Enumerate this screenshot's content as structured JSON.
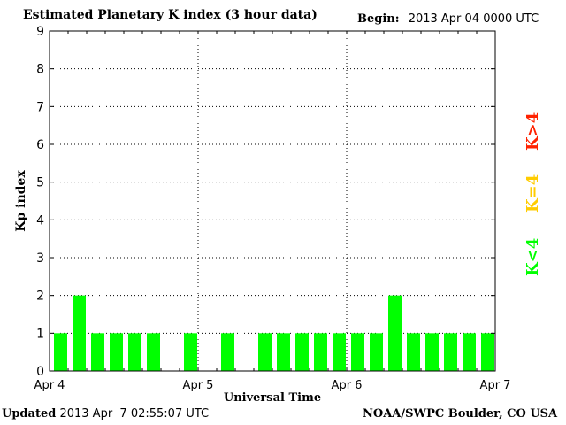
{
  "header": {
    "title": "Estimated Planetary K index (3 hour data)",
    "begin_label": "Begin:",
    "begin_value": "2013 Apr 04 0000 UTC"
  },
  "footer": {
    "updated_label": "Updated",
    "updated_value": "2013 Apr  7 02:55:07 UTC",
    "credit": "NOAA/SWPC Boulder, CO USA"
  },
  "legend": [
    {
      "label": "K>4",
      "color": "#ff2200"
    },
    {
      "label": "K=4",
      "color": "#ffcc00"
    },
    {
      "label": "K<4",
      "color": "#00ff00"
    }
  ],
  "chart_data": {
    "type": "bar",
    "title": "Estimated Planetary K index (3 hour data)",
    "xlabel": "Universal Time",
    "ylabel": "Kp index",
    "ylim": [
      0,
      9
    ],
    "yticks": [
      0,
      1,
      2,
      3,
      4,
      5,
      6,
      7,
      8,
      9
    ],
    "x_tick_labels": [
      "Apr 4",
      "Apr 5",
      "Apr 6",
      "Apr 7"
    ],
    "grid": true,
    "bar_color": "#00ff00",
    "values": [
      1,
      2,
      1,
      1,
      1,
      1,
      0,
      1,
      0,
      1,
      0,
      1,
      1,
      1,
      1,
      1,
      1,
      1,
      2,
      1,
      1,
      1,
      1,
      1
    ]
  }
}
